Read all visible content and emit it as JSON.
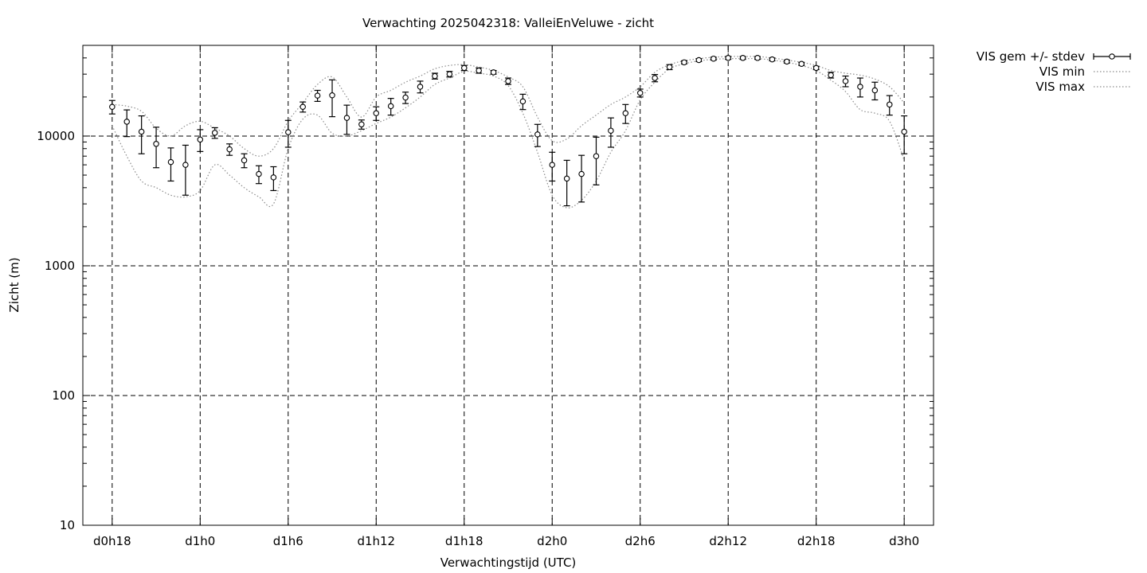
{
  "chart_data": {
    "type": "scatter",
    "title": "Verwachting 2025042318: ValleiEnVeluwe - zicht",
    "xlabel": "Verwachtingstijd (UTC)",
    "ylabel": "Zicht (m)",
    "y_scale": "log",
    "ylim": [
      10,
      50000
    ],
    "xlim_hours": [
      16,
      74
    ],
    "grid": true,
    "legend_position": "outside-top-right",
    "y_ticks": [
      {
        "value": 10,
        "label": "10"
      },
      {
        "value": 100,
        "label": "100"
      },
      {
        "value": 1000,
        "label": "1000"
      },
      {
        "value": 10000,
        "label": "10000"
      }
    ],
    "x_ticks": [
      {
        "value": 18,
        "label": "d0h18"
      },
      {
        "value": 24,
        "label": "d1h0"
      },
      {
        "value": 30,
        "label": "d1h6"
      },
      {
        "value": 36,
        "label": "d1h12"
      },
      {
        "value": 42,
        "label": "d1h18"
      },
      {
        "value": 48,
        "label": "d2h0"
      },
      {
        "value": 54,
        "label": "d2h6"
      },
      {
        "value": 60,
        "label": "d2h12"
      },
      {
        "value": 66,
        "label": "d2h18"
      },
      {
        "value": 72,
        "label": "d3h0"
      }
    ],
    "x": [
      18,
      19,
      20,
      21,
      22,
      23,
      24,
      25,
      26,
      27,
      28,
      29,
      30,
      31,
      32,
      33,
      34,
      35,
      36,
      37,
      38,
      39,
      40,
      41,
      42,
      43,
      44,
      45,
      46,
      47,
      48,
      49,
      50,
      51,
      52,
      53,
      54,
      55,
      56,
      57,
      58,
      59,
      60,
      61,
      62,
      63,
      64,
      65,
      66,
      67,
      68,
      69,
      70,
      71,
      72
    ],
    "series": [
      {
        "name": "VIS gem +/- stdev",
        "style": "points-errorbars",
        "values": [
          16800,
          12900,
          10800,
          8700,
          6300,
          6000,
          9400,
          10600,
          7900,
          6500,
          5100,
          4800,
          10700,
          16800,
          20500,
          20600,
          13800,
          12300,
          15000,
          17000,
          19800,
          24000,
          29000,
          30000,
          33500,
          32000,
          31000,
          26500,
          18500,
          10300,
          6000,
          4700,
          5100,
          7000,
          11000,
          15000,
          21500,
          28000,
          34000,
          37000,
          38500,
          39500,
          40000,
          40000,
          40000,
          39000,
          37500,
          36000,
          33500,
          29500,
          26500,
          24000,
          22500,
          17500,
          10800
        ],
        "errors": [
          2000,
          3000,
          3500,
          3000,
          1800,
          2500,
          1800,
          1000,
          800,
          800,
          800,
          1000,
          2500,
          1500,
          2000,
          6500,
          3500,
          1000,
          1800,
          2500,
          2000,
          2500,
          1500,
          1500,
          1500,
          1500,
          1000,
          1500,
          2500,
          2000,
          1500,
          1800,
          2000,
          2800,
          2800,
          2500,
          1500,
          1800,
          1500,
          1000,
          1000,
          1000,
          1000,
          1000,
          1000,
          1000,
          1000,
          1000,
          1000,
          1500,
          2500,
          4000,
          3500,
          3000,
          3500
        ]
      },
      {
        "name": "VIS min",
        "style": "dotted-line",
        "values": [
          12000,
          7000,
          4500,
          4000,
          3500,
          3400,
          3800,
          6000,
          5000,
          4000,
          3400,
          3000,
          8000,
          13500,
          14500,
          10500,
          10000,
          11000,
          12500,
          14000,
          16500,
          20000,
          25000,
          28000,
          31500,
          30500,
          29000,
          24500,
          15000,
          7500,
          3500,
          2800,
          3200,
          4500,
          7500,
          11000,
          19000,
          26000,
          33000,
          36000,
          38000,
          39000,
          39500,
          39500,
          39500,
          38500,
          37000,
          35000,
          32000,
          27000,
          22000,
          16000,
          15000,
          13000,
          6500
        ]
      },
      {
        "name": "VIS max",
        "style": "dotted-line",
        "values": [
          17500,
          17000,
          15500,
          11500,
          10000,
          12000,
          13000,
          11500,
          10000,
          8000,
          7000,
          8000,
          13000,
          18000,
          25000,
          28500,
          20000,
          14000,
          20000,
          22500,
          26000,
          29000,
          33000,
          35000,
          35500,
          34000,
          32000,
          28500,
          24000,
          14000,
          9200,
          9500,
          12000,
          14500,
          17500,
          20000,
          24000,
          31000,
          35500,
          38000,
          39500,
          40500,
          41000,
          41000,
          41000,
          40000,
          38500,
          37000,
          35000,
          32000,
          30500,
          29500,
          27500,
          24000,
          18000
        ]
      }
    ]
  }
}
